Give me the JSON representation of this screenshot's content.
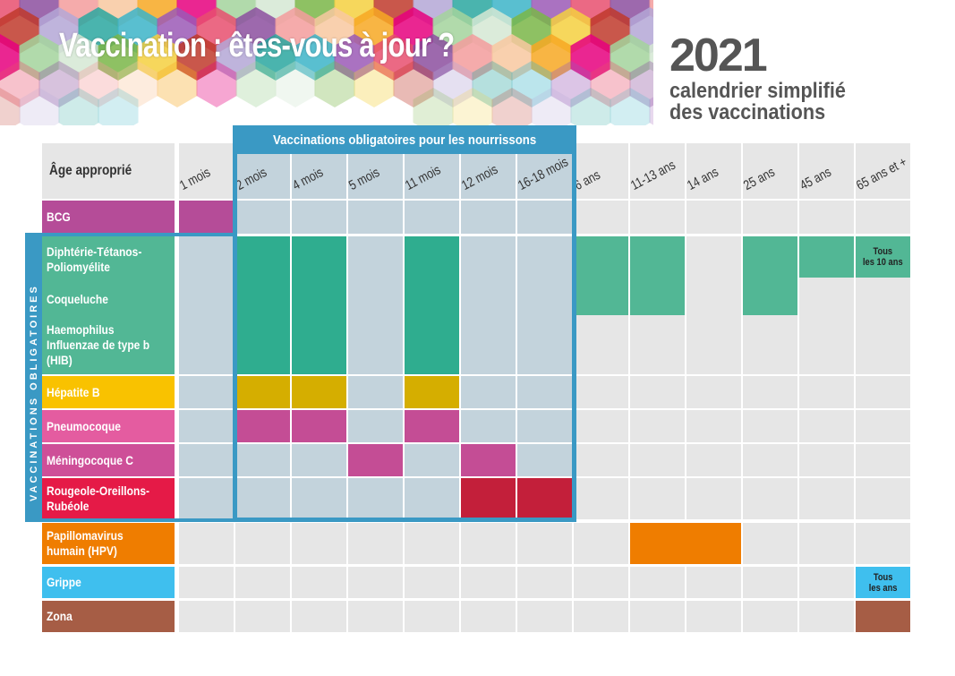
{
  "header": {
    "title": "Vaccination : êtes-vous à jour ?",
    "year": "2021",
    "subtitle_line1": "calendrier simplifié",
    "subtitle_line2": "des vaccinations"
  },
  "table": {
    "age_label": "Âge approprié",
    "obligatory_header": "Vaccinations obligatoires pour les nourrissons",
    "obligatory_side_label": "VACCINATIONS OBLIGATOIRES",
    "ages": [
      "1 mois",
      "2 mois",
      "4 mois",
      "5 mois",
      "11 mois",
      "12 mois",
      "16-18 mois",
      "6 ans",
      "11-13 ans",
      "14 ans",
      "25 ans",
      "45 ans",
      "65 ans et +"
    ],
    "rows": [
      {
        "label": "BCG",
        "color": "#b54c98"
      },
      {
        "label": "Diphtérie-Tétanos-\nPoliomyélite",
        "color": "#52b795"
      },
      {
        "label": "Coqueluche",
        "color": "#52b795"
      },
      {
        "label": "Haemophilus\nInfluenzae de type b\n(HIB)",
        "color": "#52b795"
      },
      {
        "label": "Hépatite B",
        "color": "#f9c200"
      },
      {
        "label": "Pneumocoque",
        "color": "#e45ca0"
      },
      {
        "label": "Méningocoque C",
        "color": "#ce4f98"
      },
      {
        "label": "Rougeole-Oreillons-\nRubéole",
        "color": "#e51a47"
      },
      {
        "label": "Papillomavirus\nhumain (HPV)",
        "color": "#ef7d00"
      },
      {
        "label": "Grippe",
        "color": "#3fbfee"
      },
      {
        "label": "Zona",
        "color": "#a65d45"
      }
    ],
    "notes": {
      "dtp_65": "Tous\nles 10 ans",
      "grippe_65": "Tous\nles ans"
    },
    "colors": {
      "grey_cell": "#e6e6e6",
      "blue_cell": "#c3d3dc",
      "oblig_border": "#3a99c4",
      "bcg": "#b54c98",
      "dtp_infant": "#2fad8f",
      "dtp_adult": "#52b795",
      "hepb_infant": "#d5ae00",
      "pneumo": "#c44d95",
      "menc": "#c44d95",
      "ror": "#c31f3a",
      "hpv": "#ef7d00",
      "grippe": "#3fbfee",
      "zona": "#a65d45"
    }
  }
}
